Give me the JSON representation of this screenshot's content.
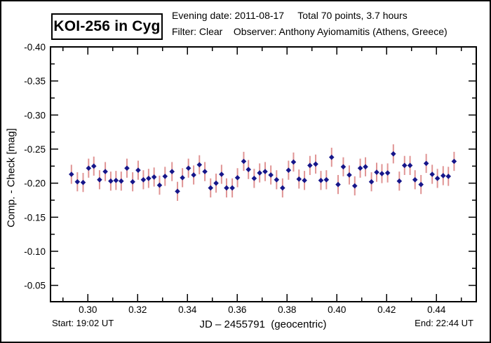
{
  "header": {
    "title": "KOI-256 in Cyg",
    "line1": "Evening date: 2011-08-17     Total 70 points, 3.7 hours",
    "line2": "Filter: Clear    Observer: Anthony Ayiomamitis (Athens, Greece)"
  },
  "footer": {
    "start": "Start: 19:02 UT",
    "end": "End: 22:44 UT",
    "xlabel": "JD – 2455791  (geocentric)"
  },
  "colors": {
    "marker": "#16168a",
    "errorbar": "#e09494",
    "frame": "#000000",
    "background": "#ffffff"
  },
  "chart_data": {
    "type": "scatter",
    "title": "KOI-256 in Cyg",
    "xlabel": "JD – 2455791 (geocentric)",
    "ylabel": "Comp. - Check [mag]",
    "legend": "none",
    "grid": false,
    "y_axis_inverted": true,
    "xlim": [
      0.285,
      0.456
    ],
    "ylim_top_to_bottom": [
      -0.4,
      -0.026
    ],
    "x_major_ticks": [
      0.3,
      0.32,
      0.34,
      0.36,
      0.38,
      0.4,
      0.42,
      0.44
    ],
    "x_minor_ticks": [
      0.29,
      0.31,
      0.33,
      0.35,
      0.37,
      0.39,
      0.41,
      0.43,
      0.45
    ],
    "y_major_ticks": [
      -0.4,
      -0.35,
      -0.3,
      -0.25,
      -0.2,
      -0.15,
      -0.1,
      -0.05
    ],
    "y_minor_ticks": [
      -0.375,
      -0.325,
      -0.275,
      -0.225,
      -0.175,
      -0.125,
      -0.075
    ],
    "error_bar_mag": 0.014,
    "points": [
      [
        0.2934,
        -0.213
      ],
      [
        0.2958,
        -0.202
      ],
      [
        0.2981,
        -0.201
      ],
      [
        0.3003,
        -0.222
      ],
      [
        0.3024,
        -0.225
      ],
      [
        0.3047,
        -0.205
      ],
      [
        0.307,
        -0.217
      ],
      [
        0.3092,
        -0.203
      ],
      [
        0.3113,
        -0.204
      ],
      [
        0.3134,
        -0.203
      ],
      [
        0.3157,
        -0.222
      ],
      [
        0.318,
        -0.202
      ],
      [
        0.3202,
        -0.219
      ],
      [
        0.3223,
        -0.205
      ],
      [
        0.3244,
        -0.207
      ],
      [
        0.3266,
        -0.209
      ],
      [
        0.3288,
        -0.197
      ],
      [
        0.331,
        -0.21
      ],
      [
        0.3338,
        -0.217
      ],
      [
        0.336,
        -0.188
      ],
      [
        0.338,
        -0.208
      ],
      [
        0.3404,
        -0.222
      ],
      [
        0.3425,
        -0.212
      ],
      [
        0.3448,
        -0.227
      ],
      [
        0.347,
        -0.217
      ],
      [
        0.3493,
        -0.193
      ],
      [
        0.3515,
        -0.2
      ],
      [
        0.3537,
        -0.213
      ],
      [
        0.3557,
        -0.193
      ],
      [
        0.358,
        -0.193
      ],
      [
        0.3601,
        -0.208
      ],
      [
        0.3626,
        -0.232
      ],
      [
        0.3645,
        -0.22
      ],
      [
        0.3668,
        -0.207
      ],
      [
        0.369,
        -0.215
      ],
      [
        0.3712,
        -0.217
      ],
      [
        0.3735,
        -0.212
      ],
      [
        0.3758,
        -0.205
      ],
      [
        0.3782,
        -0.193
      ],
      [
        0.3806,
        -0.219
      ],
      [
        0.3826,
        -0.231
      ],
      [
        0.3848,
        -0.206
      ],
      [
        0.387,
        -0.204
      ],
      [
        0.3892,
        -0.226
      ],
      [
        0.3915,
        -0.228
      ],
      [
        0.3936,
        -0.204
      ],
      [
        0.3958,
        -0.205
      ],
      [
        0.3979,
        -0.238
      ],
      [
        0.4005,
        -0.198
      ],
      [
        0.4026,
        -0.224
      ],
      [
        0.405,
        -0.212
      ],
      [
        0.4072,
        -0.196
      ],
      [
        0.4094,
        -0.222
      ],
      [
        0.4115,
        -0.224
      ],
      [
        0.4139,
        -0.202
      ],
      [
        0.416,
        -0.216
      ],
      [
        0.4181,
        -0.214
      ],
      [
        0.4204,
        -0.215
      ],
      [
        0.4227,
        -0.243
      ],
      [
        0.4251,
        -0.203
      ],
      [
        0.4272,
        -0.226
      ],
      [
        0.4294,
        -0.226
      ],
      [
        0.4314,
        -0.205
      ],
      [
        0.4338,
        -0.198
      ],
      [
        0.4359,
        -0.229
      ],
      [
        0.4383,
        -0.213
      ],
      [
        0.4404,
        -0.207
      ],
      [
        0.4427,
        -0.211
      ],
      [
        0.4448,
        -0.21
      ],
      [
        0.4471,
        -0.232
      ]
    ]
  }
}
